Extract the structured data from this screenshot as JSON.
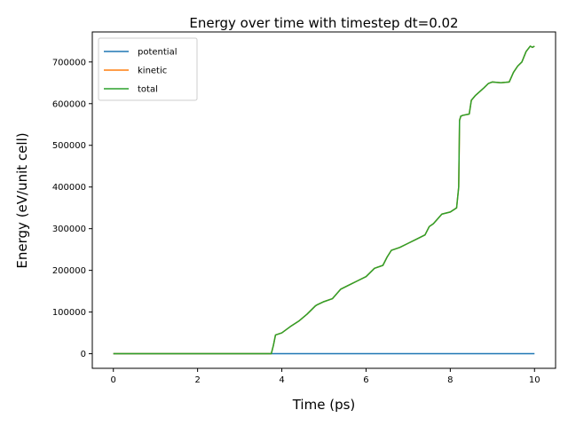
{
  "chart_data": {
    "type": "line",
    "title": "Energy over time with timestep dt=0.02",
    "xlabel": "Time (ps)",
    "ylabel": "Energy (eV/unit cell)",
    "xlim": [
      -0.5,
      10.5
    ],
    "ylim": [
      -35000,
      772000
    ],
    "xticks": [
      0,
      2,
      4,
      6,
      8,
      10
    ],
    "yticks": [
      0,
      100000,
      200000,
      300000,
      400000,
      500000,
      600000,
      700000
    ],
    "grid": false,
    "legend_position": "upper-left",
    "colors": {
      "potential": "#1f77b4",
      "kinetic": "#ff7f0e",
      "total": "#2ca02c"
    },
    "series": [
      {
        "name": "potential",
        "x": [
          0,
          10
        ],
        "y": [
          0,
          0
        ]
      },
      {
        "name": "kinetic",
        "x": [
          0,
          3.75,
          3.8,
          3.85,
          4.0,
          4.2,
          4.4,
          4.6,
          4.8,
          4.85,
          5.0,
          5.2,
          5.4,
          5.6,
          5.8,
          6.0,
          6.2,
          6.4,
          6.5,
          6.6,
          6.8,
          7.0,
          7.2,
          7.4,
          7.5,
          7.6,
          7.8,
          8.0,
          8.15,
          8.2,
          8.22,
          8.25,
          8.3,
          8.45,
          8.5,
          8.6,
          8.8,
          8.9,
          9.0,
          9.2,
          9.4,
          9.5,
          9.6,
          9.7,
          9.8,
          9.9,
          9.95,
          10.0
        ],
        "y": [
          0,
          0,
          20000,
          45000,
          50000,
          65000,
          78000,
          95000,
          115000,
          118000,
          125000,
          132000,
          155000,
          165000,
          175000,
          185000,
          205000,
          212000,
          232000,
          248000,
          255000,
          265000,
          275000,
          285000,
          305000,
          312000,
          335000,
          340000,
          350000,
          400000,
          560000,
          570000,
          572000,
          575000,
          608000,
          620000,
          638000,
          648000,
          652000,
          650000,
          652000,
          675000,
          690000,
          700000,
          725000,
          738000,
          735000,
          738000
        ]
      },
      {
        "name": "total",
        "x": [
          0,
          3.75,
          3.8,
          3.85,
          4.0,
          4.2,
          4.4,
          4.6,
          4.8,
          4.85,
          5.0,
          5.2,
          5.4,
          5.6,
          5.8,
          6.0,
          6.2,
          6.4,
          6.5,
          6.6,
          6.8,
          7.0,
          7.2,
          7.4,
          7.5,
          7.6,
          7.8,
          8.0,
          8.15,
          8.2,
          8.22,
          8.25,
          8.3,
          8.45,
          8.5,
          8.6,
          8.8,
          8.9,
          9.0,
          9.2,
          9.4,
          9.5,
          9.6,
          9.7,
          9.8,
          9.9,
          9.95,
          10.0
        ],
        "y": [
          0,
          0,
          20000,
          45000,
          50000,
          65000,
          78000,
          95000,
          115000,
          118000,
          125000,
          132000,
          155000,
          165000,
          175000,
          185000,
          205000,
          212000,
          232000,
          248000,
          255000,
          265000,
          275000,
          285000,
          305000,
          312000,
          335000,
          340000,
          350000,
          400000,
          560000,
          570000,
          572000,
          575000,
          608000,
          620000,
          638000,
          648000,
          652000,
          650000,
          652000,
          675000,
          690000,
          700000,
          725000,
          738000,
          735000,
          738000
        ]
      }
    ]
  }
}
